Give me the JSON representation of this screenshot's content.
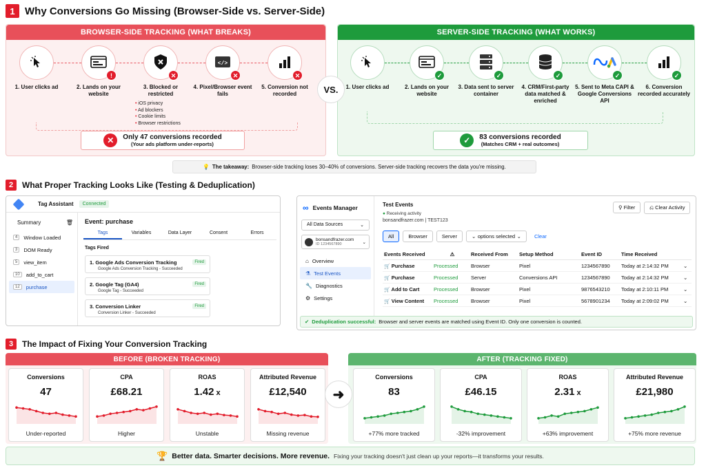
{
  "s1": {
    "num": "1",
    "title": "Why Conversions Go Missing (Browser-Side vs. Server-Side)",
    "browser": {
      "bar": "BROWSER-SIDE TRACKING (WHAT BREAKS)",
      "steps": [
        {
          "label": "1. User clicks ad",
          "icon": "cursor-icon"
        },
        {
          "label": "2. Lands on your website",
          "icon": "browser-window-icon"
        },
        {
          "label": "3. Blocked or restricted",
          "icon": "shield-icon"
        },
        {
          "label": "4. Pixel/Browser event fails",
          "icon": "code-icon"
        },
        {
          "label": "5. Conversion not recorded",
          "icon": "bar-chart-icon"
        }
      ],
      "bullets": [
        "iOS privacy",
        "Ad blockers",
        "Cookie limits",
        "Browser restrictions"
      ],
      "result_main": "Only 47 conversions recorded",
      "result_sub": "(Your ads platform under-reports)"
    },
    "vs": "VS.",
    "server": {
      "bar": "SERVER-SIDE TRACKING (WHAT WORKS)",
      "steps": [
        {
          "label": "1. User clicks ad",
          "icon": "cursor-icon"
        },
        {
          "label": "2. Lands on your website",
          "icon": "browser-window-icon"
        },
        {
          "label": "3. Data sent to server container",
          "icon": "server-icon"
        },
        {
          "label": "4. CRM/First-party data matched & enriched",
          "icon": "database-icon"
        },
        {
          "label": "5. Sent to Meta CAPI & Google Conversions API",
          "icon": "meta-google-icon"
        },
        {
          "label": "6. Conversion recorded accurately",
          "icon": "bar-chart-icon"
        }
      ],
      "result_main": "83 conversions recorded",
      "result_sub": "(Matches CRM + real outcomes)"
    },
    "takeaway_bold": "The takeaway:",
    "takeaway": " Browser-side tracking loses 30–40% of conversions. Server-side tracking recovers the data you're missing."
  },
  "s2": {
    "num": "2",
    "title": "What Proper Tracking Looks Like (Testing & Deduplication)",
    "ta": {
      "name": "Tag Assistant",
      "status": "Connected",
      "summary": "Summary",
      "events": [
        {
          "n": "4",
          "label": "Window Loaded"
        },
        {
          "n": "3",
          "label": "DOM Ready"
        },
        {
          "n": "5",
          "label": "view_item"
        },
        {
          "n": "10",
          "label": "add_to_cart"
        },
        {
          "n": "12",
          "label": "purchase"
        }
      ],
      "event_title": "Event: purchase",
      "tabs": [
        "Tags",
        "Variables",
        "Data Layer",
        "Consent",
        "Errors"
      ],
      "tags_fired": "Tags Fired",
      "tags": [
        {
          "name": "1.  Google Ads Conversion Tracking",
          "sub": "Google Ads Conversion Tracking - Succeeded",
          "status": "Fired"
        },
        {
          "name": "2.  Google Tag (GA4)",
          "sub": "Google Tag - Succeeded",
          "status": "Fired"
        },
        {
          "name": "3.  Conversion Linker",
          "sub": "Conversion Linker - Succeeded",
          "status": "Fired"
        }
      ]
    },
    "em": {
      "name": "Events Manager",
      "sources": "All Data Sources",
      "account": "bonsandfrazer.com",
      "account_id": "ID 1234567890",
      "nav": [
        "Overview",
        "Test Events",
        "Diagnostics",
        "Settings"
      ],
      "test_title": "Test Events",
      "receiving": "Receiving activity",
      "site": "bonsandfrazer.com | TEST123",
      "filter": "Filter",
      "clear_activity": "Clear Activity",
      "filters": [
        "All",
        "Browser",
        "Server"
      ],
      "options": "options selected",
      "clear": "Clear",
      "headers": [
        "Events Received",
        "Received From",
        "Setup Method",
        "Event ID",
        "Time Received"
      ],
      "rows": [
        {
          "e": "Purchase",
          "s": "Processed",
          "f": "Browser",
          "m": "Pixel",
          "id": "1234567890",
          "t": "Today at 2:14:32 PM"
        },
        {
          "e": "Purchase",
          "s": "Processed",
          "f": "Server",
          "m": "Conversions API",
          "id": "1234567890",
          "t": "Today at 2:14:32 PM"
        },
        {
          "e": "Add to Cart",
          "s": "Processed",
          "f": "Browser",
          "m": "Pixel",
          "id": "9876543210",
          "t": "Today at 2:10:11 PM"
        },
        {
          "e": "View Content",
          "s": "Processed",
          "f": "Browser",
          "m": "Pixel",
          "id": "5678901234",
          "t": "Today at 2:09:02 PM"
        }
      ],
      "dedup_bold": "Deduplication successful:",
      "dedup": " Browser and server events are matched using Event ID. Only one conversion is counted."
    }
  },
  "s3": {
    "num": "3",
    "title": "The Impact of Fixing Your Conversion Tracking",
    "before": "BEFORE (BROKEN TRACKING)",
    "after": "AFTER (TRACKING FIXED)",
    "before_cards": [
      {
        "t": "Conversions",
        "v": "47",
        "f": "Under-reported"
      },
      {
        "t": "CPA",
        "v": "£68.21",
        "f": "Higher"
      },
      {
        "t": "ROAS",
        "v": "1.42x",
        "f": "Unstable"
      },
      {
        "t": "Attributed Revenue",
        "v": "£12,540",
        "f": "Missing revenue"
      }
    ],
    "after_cards": [
      {
        "t": "Conversions",
        "v": "83",
        "f": "+77% more tracked"
      },
      {
        "t": "CPA",
        "v": "£46.15",
        "f": "-32% improvement"
      },
      {
        "t": "ROAS",
        "v": "2.31x",
        "f": "+63% improvement"
      },
      {
        "t": "Attributed Revenue",
        "v": "£21,980",
        "f": "+75% more revenue"
      }
    ],
    "footer_bold": "Better data. Smarter decisions. More revenue.",
    "footer": "Fixing your tracking doesn't just clean up your reports—it transforms your results."
  },
  "colors": {
    "red": "#e21d2b",
    "green": "#1e9b3c"
  }
}
